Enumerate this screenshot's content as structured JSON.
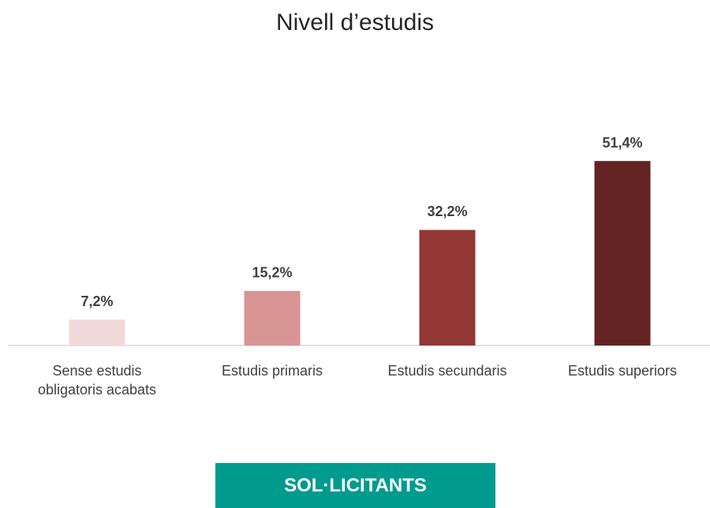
{
  "chart_data": {
    "type": "bar",
    "title": "Nivell d’estudis",
    "categories": [
      "Sense estudis obligatoris acabats",
      "Estudis primaris",
      "Estudis secundaris",
      "Estudis superiors"
    ],
    "values": [
      7.2,
      15.2,
      32.2,
      51.4
    ],
    "value_labels": [
      "7,2%",
      "15,2%",
      "32,2%",
      "51,4%"
    ],
    "colors": [
      "#f2d9d9",
      "#d99594",
      "#943634",
      "#632423"
    ]
  },
  "banner": {
    "label": "SOL·LICITANTS"
  }
}
